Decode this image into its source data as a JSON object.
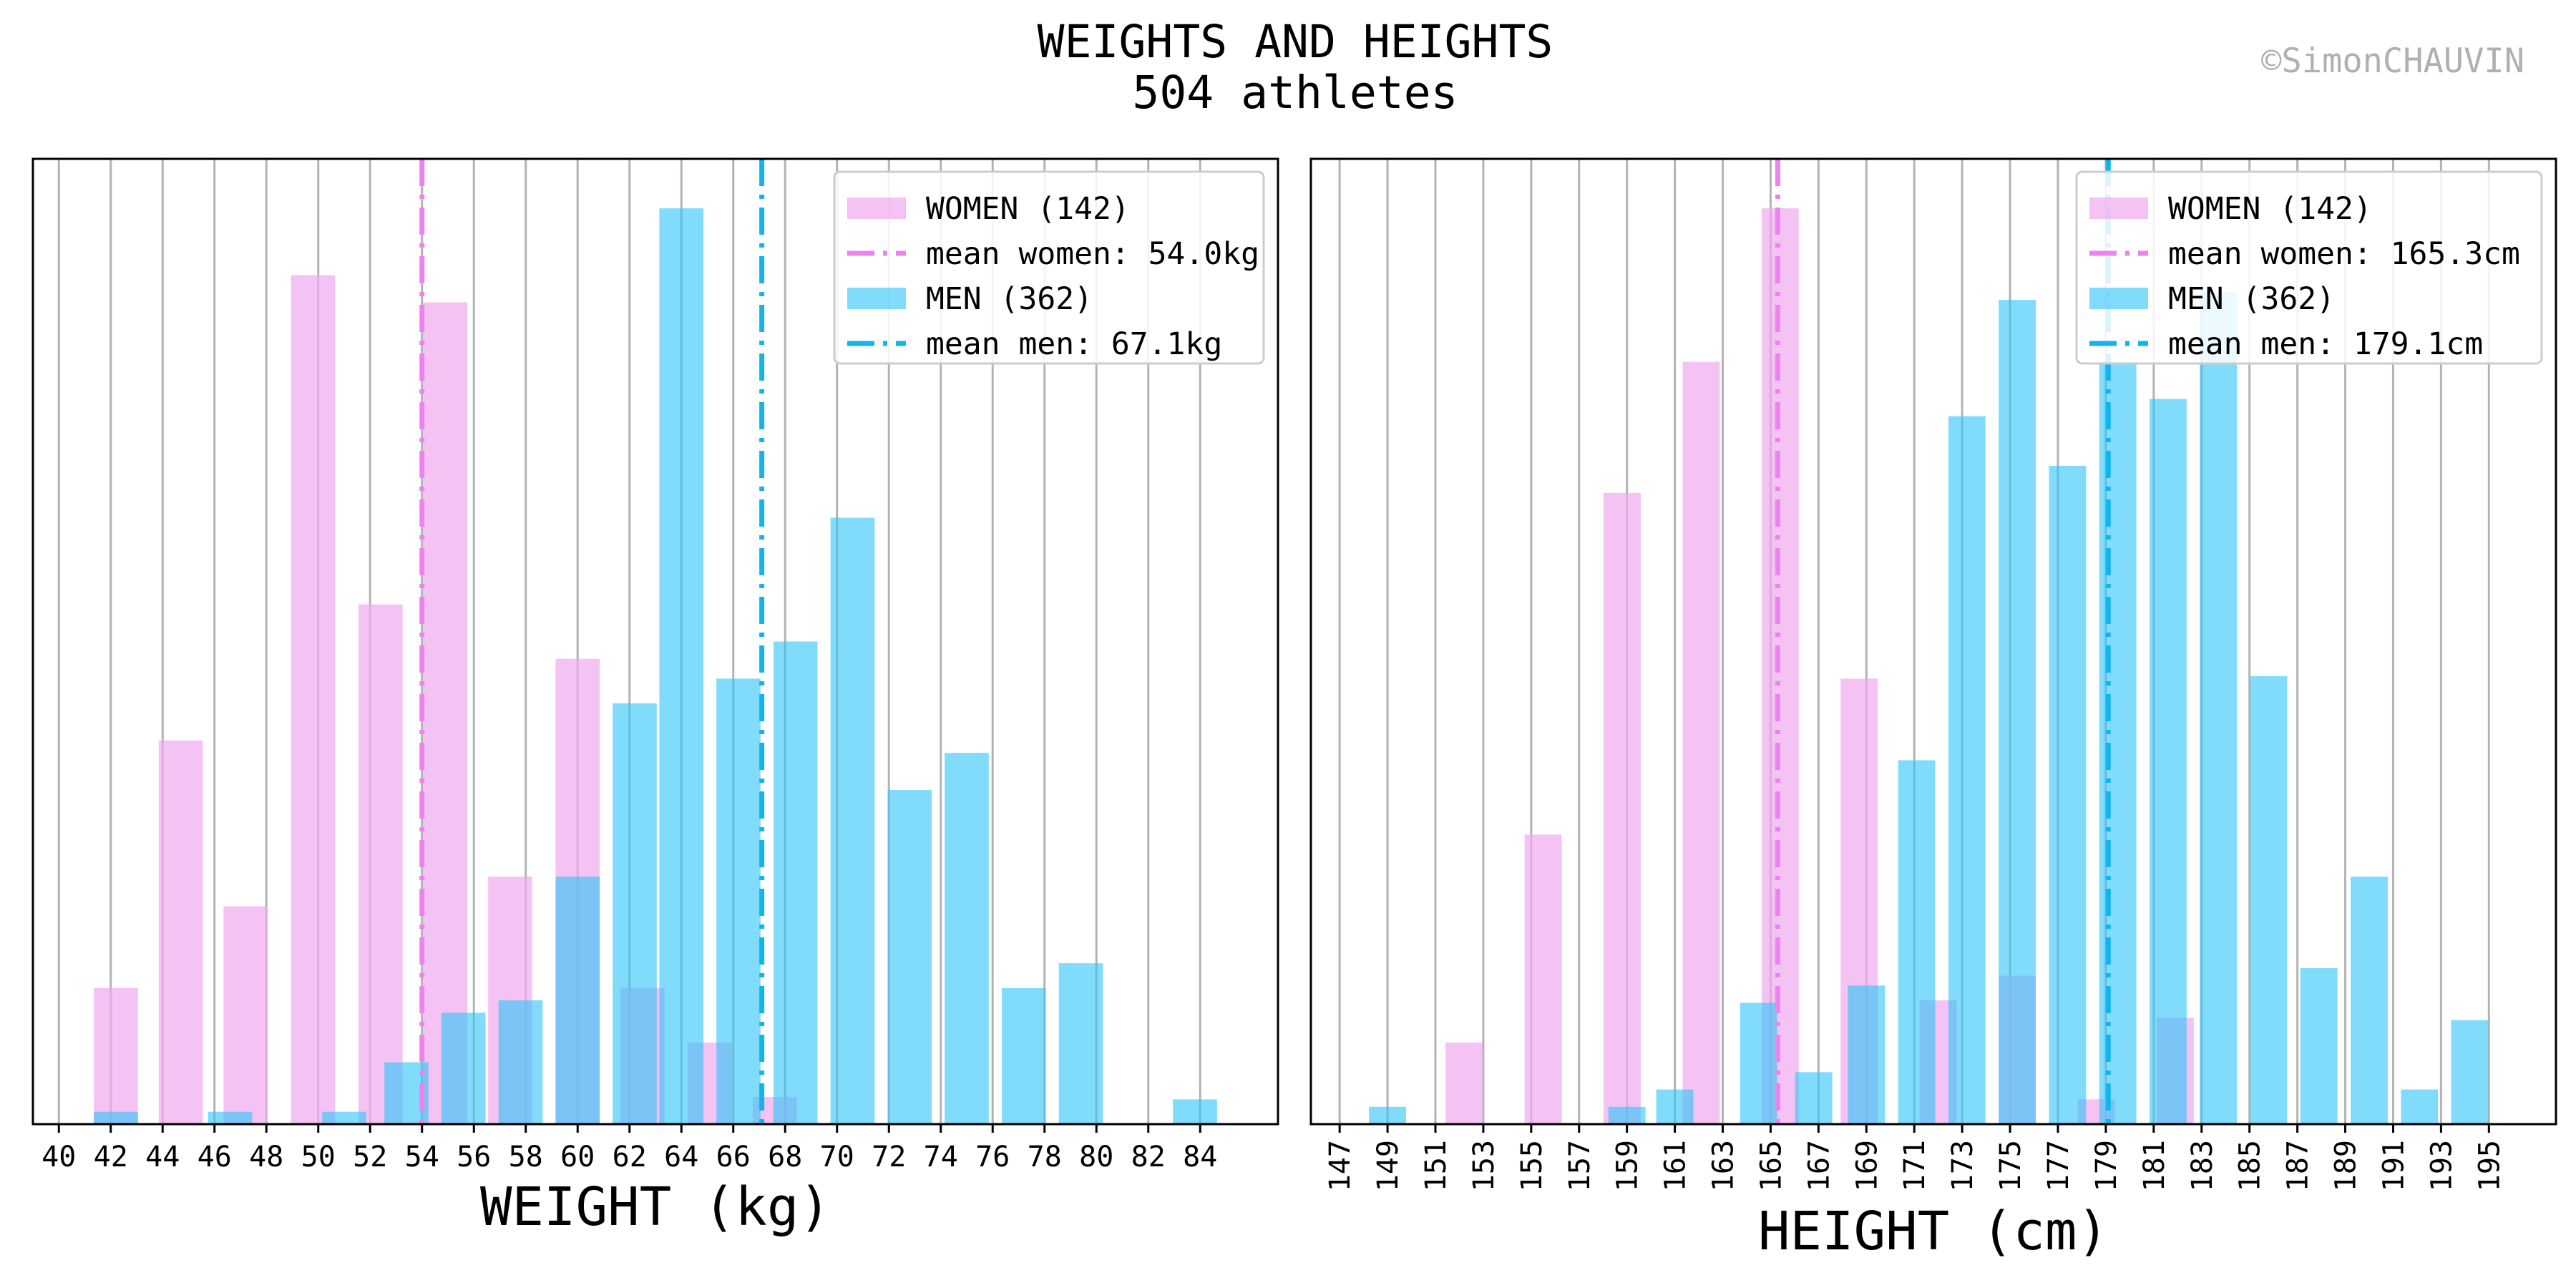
{
  "figure": {
    "title": "WEIGHTS AND HEIGHTS",
    "subtitle": "504 athletes",
    "credit": "©SimonCHAUVIN"
  },
  "colors": {
    "women": "#f0a8ee",
    "men": "#33c5f7",
    "women_mean": "#ee82ee",
    "men_mean": "#12b5ea",
    "grid": "#b3b3b3",
    "frame": "#000000"
  },
  "chart_data": [
    {
      "type": "bar",
      "xlabel": "WEIGHT (kg)",
      "ylabel": "",
      "grid": "vertical",
      "legend_position": "top-right",
      "x_ticks": [
        40,
        42,
        44,
        46,
        48,
        50,
        52,
        54,
        56,
        58,
        60,
        62,
        64,
        66,
        68,
        70,
        72,
        74,
        76,
        78,
        80,
        82,
        84
      ],
      "x_tick_rotation": 0,
      "xlim": [
        39,
        87
      ],
      "ylim": [
        0,
        39
      ],
      "series": [
        {
          "name": "WOMEN (142)",
          "x": [
            42.2,
            44.7,
            47.2,
            49.8,
            52.4,
            54.9,
            57.4,
            60.0,
            62.5,
            65.1,
            67.6
          ],
          "values": [
            5.5,
            15.5,
            8.8,
            34.3,
            21.0,
            33.2,
            10.0,
            18.8,
            5.5,
            3.3,
            1.1
          ]
        },
        {
          "name": "MEN (362)",
          "x": [
            42.2,
            46.6,
            51.0,
            53.4,
            55.6,
            57.8,
            60.0,
            62.2,
            64.0,
            66.2,
            68.4,
            70.6,
            72.8,
            75.0,
            77.2,
            79.4,
            83.8
          ],
          "values": [
            0.5,
            0.5,
            0.5,
            2.5,
            4.5,
            5.0,
            10.0,
            17.0,
            37.0,
            18.0,
            19.5,
            24.5,
            13.5,
            15.0,
            5.5,
            6.5,
            1.0
          ]
        },
        {
          "name": "mean women: 54.0kg",
          "mean": 54.0
        },
        {
          "name": "mean men: 67.1kg",
          "mean": 67.1
        }
      ]
    },
    {
      "type": "bar",
      "xlabel": "HEIGHT (cm)",
      "ylabel": "",
      "grid": "vertical",
      "legend_position": "top-right",
      "x_ticks": [
        147,
        149,
        151,
        153,
        155,
        157,
        159,
        161,
        163,
        165,
        167,
        169,
        171,
        173,
        175,
        177,
        179,
        181,
        183,
        185,
        187,
        189,
        191,
        193,
        195
      ],
      "x_tick_rotation": -90,
      "xlim": [
        145.8,
        197.8
      ],
      "ylim": [
        0,
        39
      ],
      "series": [
        {
          "name": "WOMEN (142)",
          "x": [
            152.2,
            155.5,
            158.8,
            162.1,
            165.4,
            168.7,
            172.0,
            175.3,
            178.6,
            181.9
          ],
          "values": [
            3.3,
            11.7,
            25.5,
            30.8,
            37.0,
            18.0,
            5.0,
            6.0,
            1.0,
            4.3
          ]
        },
        {
          "name": "MEN (362)",
          "x": [
            149.0,
            159.0,
            161.0,
            164.5,
            166.8,
            169.0,
            171.1,
            173.2,
            175.3,
            177.4,
            179.5,
            181.6,
            183.7,
            185.8,
            187.9,
            190.0,
            192.1,
            194.2
          ],
          "values": [
            0.7,
            0.7,
            1.4,
            4.9,
            2.1,
            5.6,
            14.7,
            28.6,
            33.3,
            26.6,
            30.8,
            29.3,
            33.6,
            18.1,
            6.3,
            10.0,
            1.4,
            4.2
          ]
        },
        {
          "name": "mean women: 165.3cm",
          "mean": 165.3
        },
        {
          "name": "mean men: 179.1cm",
          "mean": 179.1
        }
      ]
    }
  ]
}
